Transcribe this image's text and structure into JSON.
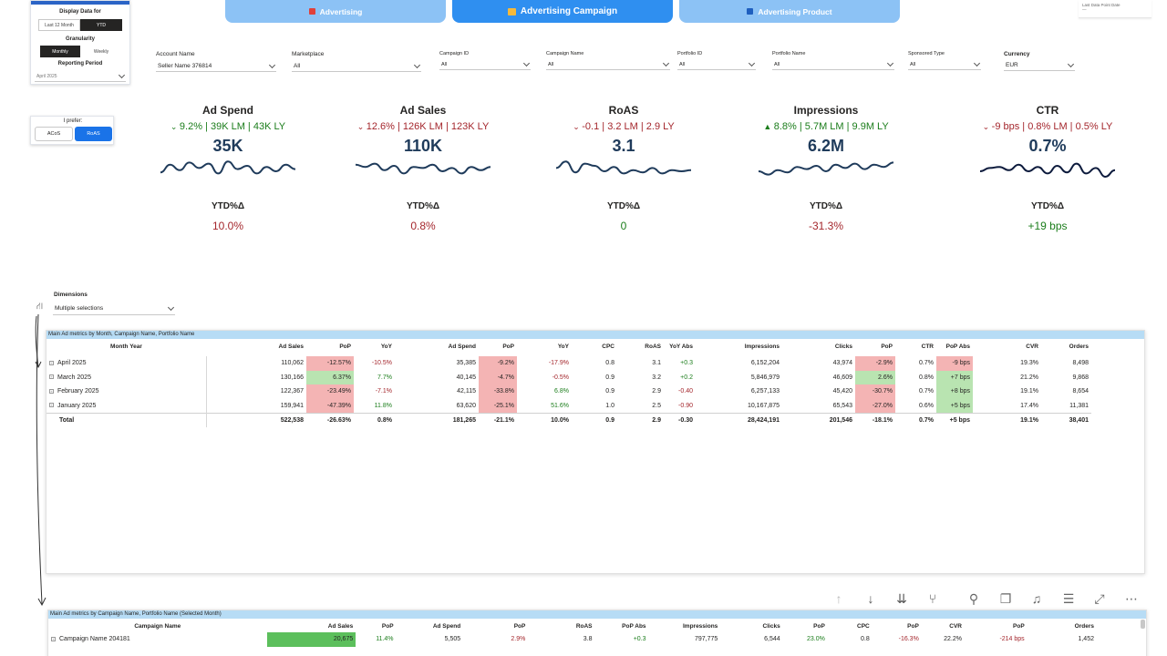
{
  "filters_panel": {
    "display_data_for": "Display Data for",
    "options_period": [
      "Last 12 Month",
      "YTD"
    ],
    "granularity": "Granularity",
    "options_granularity": [
      "Monthly",
      "Weekly"
    ],
    "reporting_period": "Reporting Period",
    "reporting_period_value": "April 2025"
  },
  "prefer": {
    "label": "I prefer:",
    "options": [
      "ACoS",
      "RoAS"
    ]
  },
  "nav": {
    "tabs": [
      "Advertising",
      "Advertising Campaign",
      "Advertising Product"
    ]
  },
  "last_data_point": {
    "label": "Last Data Point Date",
    "value": "—"
  },
  "slicers": [
    {
      "label": "Account Name",
      "value": "Seller Name 376814"
    },
    {
      "label": "Marketplace",
      "value": "All"
    },
    {
      "label": "Campaign ID",
      "value": "All"
    },
    {
      "label": "Campaign Name",
      "value": "All"
    },
    {
      "label": "Portfolio ID",
      "value": "All"
    },
    {
      "label": "Portfolio Name",
      "value": "All"
    },
    {
      "label": "Sponsored Type",
      "value": "All"
    },
    {
      "label": "Currency",
      "value": "EUR"
    }
  ],
  "kpis": [
    {
      "title": "Ad Spend",
      "direction": "down",
      "delta": "9.2% | 39K LM | 43K LY",
      "value": "35K",
      "ytd_label": "YTD%Δ",
      "ytd": "10.0%",
      "delta_color": "#1b7d1b",
      "ytd_color": "#a4262c",
      "spark": [
        0.55,
        0.2,
        0.45,
        0.1,
        0.35,
        0.15,
        0.6,
        0.05,
        0.4,
        0.25,
        0.6,
        0.3,
        0.5,
        0.2,
        0.4
      ]
    },
    {
      "title": "Ad Sales",
      "direction": "down",
      "delta": "12.6% | 126K LM | 123K LY",
      "value": "110K",
      "ytd_label": "YTD%Δ",
      "ytd": "0.8%",
      "delta_color": "#a4262c",
      "ytd_color": "#a4262c",
      "spark": [
        0.2,
        0.3,
        0.15,
        0.45,
        0.25,
        0.6,
        0.3,
        0.35,
        0.2,
        0.5,
        0.35,
        0.6,
        0.3,
        0.45,
        0.3
      ]
    },
    {
      "title": "RoAS",
      "direction": "down",
      "delta": "-0.1 | 3.2 LM | 2.9 LY",
      "value": "3.1",
      "ytd_label": "YTD%Δ",
      "ytd": "0",
      "delta_color": "#a4262c",
      "ytd_color": "#1b7d1b",
      "spark": [
        0.35,
        0.05,
        0.55,
        0.15,
        0.25,
        0.5,
        0.3,
        0.6,
        0.45,
        0.55,
        0.35,
        0.6,
        0.45,
        0.5,
        0.45
      ]
    },
    {
      "title": "Impressions",
      "direction": "up",
      "delta": "8.8% | 5.7M LM | 9.9M LY",
      "value": "6.2M",
      "ytd_label": "YTD%Δ",
      "ytd": "-31.3%",
      "delta_color": "#1b7d1b",
      "ytd_color": "#a4262c",
      "spark": [
        0.5,
        0.65,
        0.45,
        0.55,
        0.3,
        0.4,
        0.25,
        0.5,
        0.2,
        0.35,
        0.15,
        0.4,
        0.2,
        0.3,
        0.1
      ]
    },
    {
      "title": "CTR",
      "direction": "down",
      "delta": "-9 bps | 0.8% LM | 0.5% LY",
      "value": "0.7%",
      "ytd_label": "YTD%Δ",
      "ytd": "+19 bps",
      "delta_color": "#a4262c",
      "ytd_color": "#1b7d1b",
      "spark": [
        0.5,
        0.35,
        0.3,
        0.45,
        0.2,
        0.5,
        0.3,
        0.6,
        0.25,
        0.55,
        0.15,
        0.6,
        0.35,
        0.75,
        0.45
      ]
    }
  ],
  "dimensions": {
    "label": "Dimensions",
    "value": "Multiple selections"
  },
  "table1": {
    "title": "Main Ad metrics by Month, Campaign Name, Portfolio Name",
    "headers": [
      "Month Year",
      "Ad Sales",
      "PoP",
      "YoY",
      "Ad Spend",
      "PoP",
      "YoY",
      "CPC",
      "RoAS",
      "YoY Abs",
      "Impressions",
      "Clicks",
      "PoP",
      "CTR",
      "PoP Abs",
      "CVR",
      "Orders"
    ],
    "rows": [
      [
        "April 2025",
        "110,062",
        "-12.57%",
        "-10.5%",
        "35,385",
        "-9.2%",
        "-17.9%",
        "0.8",
        "3.1",
        "+0.3",
        "6,152,204",
        "43,974",
        "-2.9%",
        "0.7%",
        "-9 bps",
        "19.3%",
        "8,498"
      ],
      [
        "March 2025",
        "130,166",
        "6.37%",
        "7.7%",
        "40,145",
        "-4.7%",
        "-0.5%",
        "0.9",
        "3.2",
        "+0.2",
        "5,846,979",
        "46,609",
        "2.6%",
        "0.8%",
        "+7 bps",
        "21.2%",
        "9,868"
      ],
      [
        "February 2025",
        "122,367",
        "-23.49%",
        "-7.1%",
        "42,115",
        "-33.8%",
        "6.8%",
        "0.9",
        "2.9",
        "-0.40",
        "6,257,133",
        "45,420",
        "-30.7%",
        "0.7%",
        "+8 bps",
        "19.1%",
        "8,654"
      ],
      [
        "January 2025",
        "159,941",
        "-47.39%",
        "11.8%",
        "63,620",
        "-25.1%",
        "51.6%",
        "1.0",
        "2.5",
        "-0.90",
        "10,167,875",
        "65,543",
        "-27.0%",
        "0.6%",
        "+5 bps",
        "17.4%",
        "11,381"
      ]
    ],
    "total": [
      "Total",
      "522,538",
      "-26.63%",
      "0.8%",
      "181,265",
      "-21.1%",
      "10.0%",
      "0.9",
      "2.9",
      "-0.30",
      "28,424,191",
      "201,546",
      "-18.1%",
      "0.7%",
      "+5 bps",
      "19.1%",
      "38,401"
    ]
  },
  "table2": {
    "title": "Main Ad metrics by Campaign Name, Portfolio Name (Selected Month)",
    "headers": [
      "Campaign Name",
      "Ad Sales",
      "PoP",
      "Ad Spend",
      "PoP",
      "RoAS",
      "PoP Abs",
      "Impressions",
      "Clicks",
      "PoP",
      "CPC",
      "PoP",
      "CVR",
      "PoP",
      "Orders"
    ],
    "rows": [
      [
        "Campaign Name 204181",
        "20,675",
        "11.4%",
        "5,505",
        "2.9%",
        "3.8",
        "+0.3",
        "797,775",
        "6,544",
        "23.0%",
        "0.8",
        "-16.3%",
        "22.2%",
        "-214 bps",
        "1,452"
      ]
    ]
  },
  "toolbar": {
    "icons": [
      "arrow-up-icon",
      "arrow-down-icon",
      "double-arrow-down-icon",
      "expand-hierarchy-icon",
      "pin-icon",
      "copy-icon",
      "bell-icon",
      "filter-icon",
      "focus-mode-icon",
      "more-options-icon"
    ]
  }
}
